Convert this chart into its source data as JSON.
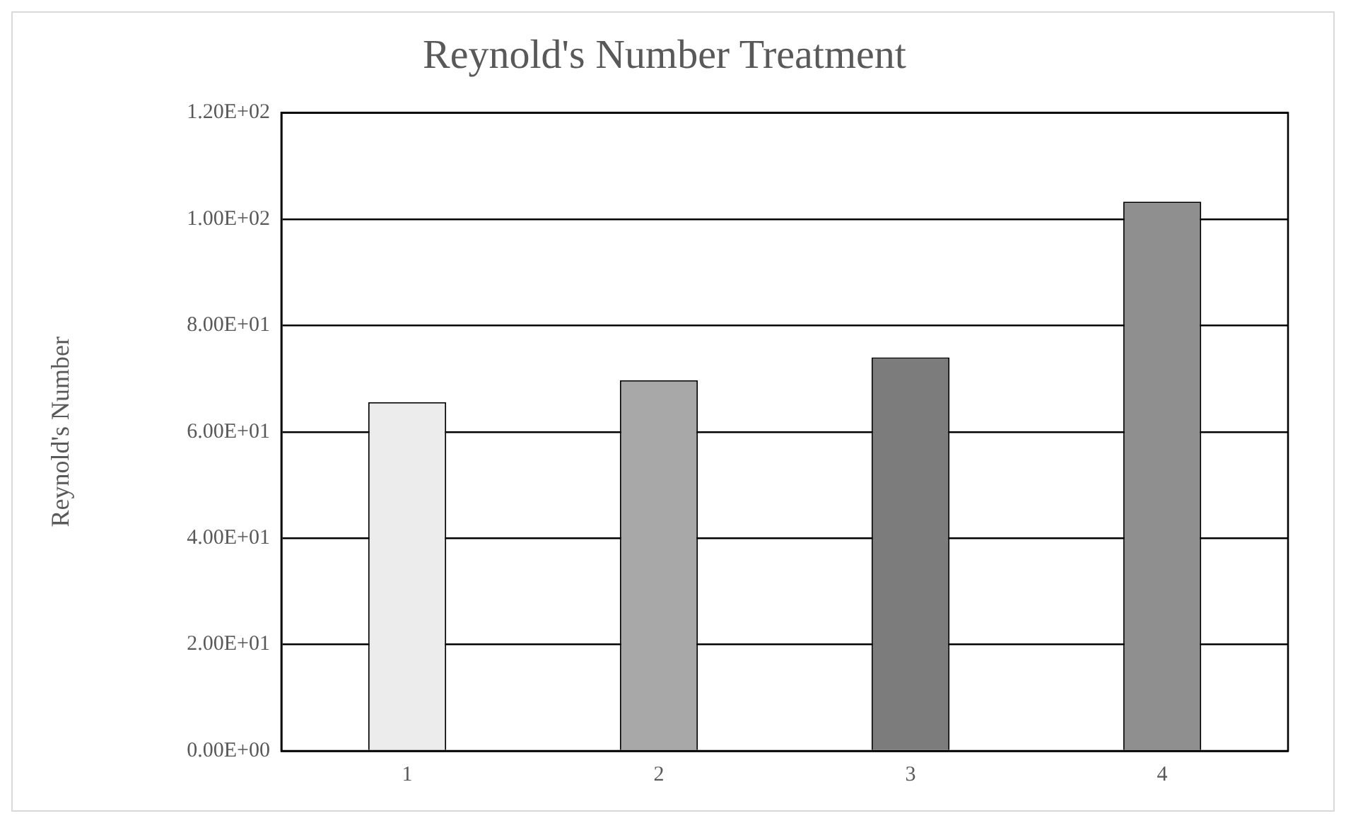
{
  "chart_data": {
    "type": "bar",
    "title": "Reynold's Number Treatment",
    "ylabel": "Reynold's Number",
    "categories": [
      "1",
      "2",
      "3",
      "4"
    ],
    "values": [
      65.6,
      69.7,
      74.0,
      103.3
    ],
    "colors": [
      "#ececec",
      "#a8a8a8",
      "#7c7c7c",
      "#8f8f8f"
    ],
    "ylim": [
      0,
      120
    ],
    "yticks": [
      {
        "value": 0,
        "label": "0.00E+00"
      },
      {
        "value": 20,
        "label": "2.00E+01"
      },
      {
        "value": 40,
        "label": "4.00E+01"
      },
      {
        "value": 60,
        "label": "6.00E+01"
      },
      {
        "value": 80,
        "label": "8.00E+01"
      },
      {
        "value": 100,
        "label": "1.00E+02"
      },
      {
        "value": 120,
        "label": "1.20E+02"
      }
    ],
    "grid": "y"
  }
}
